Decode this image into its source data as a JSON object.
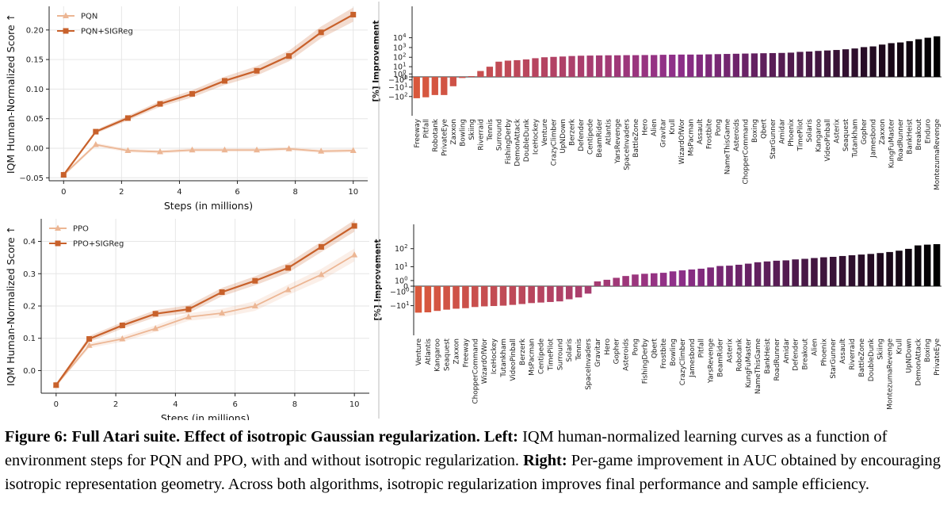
{
  "chart_data": [
    {
      "id": "pqn-curve",
      "type": "line",
      "xlabel": "Steps (in millions)",
      "ylabel": "IQM Human-Normalized Score ↑",
      "ylim": [
        -0.055,
        0.24
      ],
      "yticks": [
        -0.05,
        0.0,
        0.05,
        0.1,
        0.15,
        0.2
      ],
      "ytick_labels": [
        "−0.05",
        "0.00",
        "0.05",
        "0.10",
        "0.15",
        "0.20"
      ],
      "xlim": [
        -0.5,
        10.5
      ],
      "xticks": [
        0,
        2,
        4,
        6,
        8,
        10
      ],
      "xtick_labels": [
        "0",
        "2",
        "4",
        "6",
        "8",
        "10"
      ],
      "legend_position": "top-left",
      "x": [
        0,
        1.11,
        2.22,
        3.33,
        4.44,
        5.56,
        6.67,
        7.78,
        8.89,
        10
      ],
      "series": [
        {
          "name": "PQN",
          "marker": "triangle",
          "color": "#ecb694",
          "values": [
            -0.045,
            0.006,
            -0.004,
            -0.006,
            -0.003,
            -0.003,
            -0.003,
            -0.001,
            -0.005,
            -0.004
          ],
          "band": [
            0.003,
            0.003,
            0.003,
            0.003,
            0.003,
            0.003,
            0.003,
            0.003,
            0.003,
            0.003
          ]
        },
        {
          "name": "PQN+SIGReg",
          "marker": "square",
          "color": "#c8612b",
          "values": [
            -0.045,
            0.028,
            0.051,
            0.075,
            0.092,
            0.114,
            0.131,
            0.156,
            0.196,
            0.226
          ],
          "band": [
            0.002,
            0.003,
            0.004,
            0.005,
            0.006,
            0.007,
            0.008,
            0.009,
            0.01,
            0.012
          ]
        }
      ]
    },
    {
      "id": "ppo-curve",
      "type": "line",
      "xlabel": "Steps (in millions)",
      "ylabel": "IQM Human-Normalized Score ↑",
      "ylim": [
        -0.07,
        0.47
      ],
      "yticks": [
        0.0,
        0.1,
        0.2,
        0.3,
        0.4
      ],
      "ytick_labels": [
        "0.0",
        "0.1",
        "0.2",
        "0.3",
        "0.4"
      ],
      "xlim": [
        -0.5,
        10.5
      ],
      "xticks": [
        0,
        2,
        4,
        6,
        8,
        10
      ],
      "xtick_labels": [
        "0",
        "2",
        "4",
        "6",
        "8",
        "10"
      ],
      "legend_position": "top-left",
      "x": [
        0,
        1.11,
        2.22,
        3.33,
        4.44,
        5.56,
        6.67,
        7.78,
        8.89,
        10
      ],
      "series": [
        {
          "name": "PPO",
          "marker": "triangle",
          "color": "#ecb694",
          "values": [
            -0.045,
            0.078,
            0.098,
            0.13,
            0.166,
            0.178,
            0.2,
            0.25,
            0.297,
            0.358
          ],
          "band": [
            0.004,
            0.008,
            0.009,
            0.01,
            0.012,
            0.013,
            0.015,
            0.016,
            0.018,
            0.02
          ]
        },
        {
          "name": "PPO+SIGReg",
          "marker": "square",
          "color": "#c8612b",
          "values": [
            -0.045,
            0.098,
            0.14,
            0.176,
            0.19,
            0.243,
            0.278,
            0.318,
            0.383,
            0.448
          ],
          "band": [
            0.004,
            0.009,
            0.01,
            0.011,
            0.012,
            0.013,
            0.014,
            0.015,
            0.016,
            0.018
          ]
        }
      ]
    },
    {
      "id": "pqn-improvement",
      "type": "bar",
      "ylabel": "[%] Improvement",
      "yscale": "symlog",
      "ytick_labels": [
        "−10^2",
        "−10^1",
        "−10^0",
        "0",
        "10^0",
        "10^1",
        "10^2",
        "10^3",
        "10^4"
      ],
      "categories": [
        "Freeway",
        "Pitfall",
        "Robotank",
        "PrivateEye",
        "Zaxxon",
        "Bowling",
        "Skiing",
        "Riverraid",
        "Tennis",
        "Surround",
        "FishingDerby",
        "DemonAttack",
        "DoubleDunk",
        "IceHockey",
        "Venture",
        "CrazyClimber",
        "UpNDown",
        "Berzerk",
        "Defender",
        "Centipede",
        "BeamRider",
        "Atlantis",
        "YarsRevenge",
        "SpaceInvaders",
        "BattleZone",
        "Hero",
        "Alien",
        "Gravitar",
        "Krull",
        "WizardOfWor",
        "MsPacman",
        "Assault",
        "Frostbite",
        "Pong",
        "NameThisGame",
        "Asteroids",
        "ChopperCommand",
        "Boxing",
        "Qbert",
        "StarGunner",
        "Amidar",
        "Phoenix",
        "TimePilot",
        "Solaris",
        "Kangaroo",
        "VideoPinball",
        "Asterix",
        "Seaquest",
        "Tutankham",
        "Gopher",
        "Jamesbond",
        "Zaxxon",
        "KungFuMaster",
        "RoadRunner",
        "BankHeist",
        "Breakout",
        "Enduro",
        "MontezumaRevenge"
      ],
      "values": [
        -150,
        -120,
        -70,
        -70,
        -8,
        -0.3,
        0.2,
        3,
        10,
        35,
        45,
        50,
        60,
        80,
        100,
        110,
        120,
        135,
        145,
        150,
        155,
        160,
        160,
        165,
        165,
        170,
        170,
        180,
        185,
        190,
        190,
        190,
        200,
        210,
        220,
        230,
        240,
        250,
        260,
        270,
        280,
        300,
        360,
        390,
        450,
        500,
        560,
        660,
        800,
        1100,
        1300,
        2000,
        2800,
        3300,
        4500,
        7000,
        10000,
        14000
      ]
    },
    {
      "id": "ppo-improvement",
      "type": "bar",
      "ylabel": "[%] Improvement",
      "yscale": "symlog",
      "ytick_labels": [
        "−10^1",
        "−10^0",
        "0",
        "10^0",
        "10^1",
        "10^2"
      ],
      "categories": [
        "Venture",
        "Atlantis",
        "Kangaroo",
        "Seaquest",
        "Zaxxon",
        "Freeway",
        "ChopperCommand",
        "WizardOfWor",
        "IceHockey",
        "Tutankham",
        "VideoPinball",
        "Berzerk",
        "MsPacman",
        "Centipede",
        "TimePilot",
        "Surround",
        "Solaris",
        "Tennis",
        "SpaceInvaders",
        "Gravitar",
        "Hero",
        "Gopher",
        "Asteroids",
        "Pong",
        "FishingDerby",
        "Qbert",
        "Frostbite",
        "Bowling",
        "CrazyClimber",
        "Jamesbond",
        "Pitfall",
        "YarsRevenge",
        "BeamRider",
        "Asterix",
        "Robotank",
        "KungFuMaster",
        "NameThisGame",
        "BankHeist",
        "RoadRunner",
        "Amidar",
        "Defender",
        "Breakout",
        "Alien",
        "Phoenix",
        "StarGunner",
        "Assault",
        "Riverraid",
        "BattleZone",
        "DoubleDunk",
        "Skiing",
        "MontezumaRevenge",
        "Krull",
        "UpNDown",
        "DemonAttack",
        "Boxing",
        "PrivateEye"
      ],
      "values": [
        -25,
        -24,
        -20,
        -17,
        -15,
        -14,
        -12,
        -11,
        -10.5,
        -10,
        -9,
        -8,
        -7,
        -6.5,
        -6,
        -5.5,
        -4,
        -3,
        -1.5,
        0.8,
        1.2,
        1.8,
        2.5,
        3.2,
        3.6,
        3.9,
        4.2,
        5.2,
        6,
        6.8,
        7.6,
        9,
        11,
        11.5,
        13,
        15,
        18,
        20,
        22,
        23,
        26,
        28,
        31,
        34,
        36,
        40,
        44,
        48,
        52,
        58,
        66,
        78,
        98,
        150,
        165,
        175
      ]
    }
  ],
  "caption": {
    "figure": "Figure 6:",
    "title": "Full Atari suite. Effect of isotropic Gaussian regularization.",
    "left_label": "Left:",
    "left_text": "IQM human-normalized learning curves as a function of environment steps for PQN and PPO, with and without isotropic regularization.",
    "right_label": "Right:",
    "right_text": "Per-game improvement in AUC obtained by encouraging isotropic representation geometry. Across both algorithms, isotropic regularization improves final performance and sample efficiency."
  },
  "colors": {
    "grid": "#e6e6e6",
    "axis": "#222222",
    "bar_negative": "#d9583c",
    "bar_mid": "#8e2f8a",
    "bar_positive": "#000000"
  }
}
